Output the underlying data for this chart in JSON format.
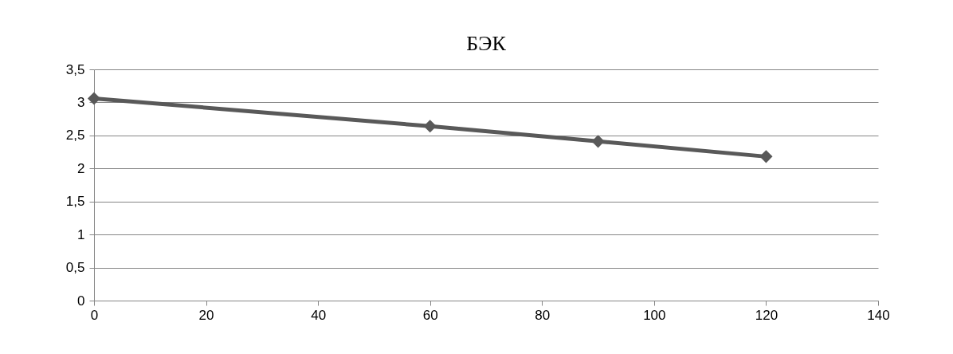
{
  "chart_data": {
    "type": "line",
    "title": "БЭК",
    "x": [
      0,
      60,
      90,
      120
    ],
    "series": [
      {
        "color": "#595959",
        "values": [
          3.06,
          2.64,
          2.41,
          2.18
        ]
      }
    ],
    "xlim": [
      0,
      140
    ],
    "xticks": [
      0,
      20,
      40,
      60,
      80,
      100,
      120,
      140
    ],
    "ylim": [
      0,
      3.5
    ],
    "yticks": [
      {
        "value": 0,
        "label": "0"
      },
      {
        "value": 0.5,
        "label": "0,5"
      },
      {
        "value": 1,
        "label": "1"
      },
      {
        "value": 1.5,
        "label": "1,5"
      },
      {
        "value": 2,
        "label": "2"
      },
      {
        "value": 2.5,
        "label": "2,5"
      },
      {
        "value": 3,
        "label": "3"
      },
      {
        "value": 3.5,
        "label": "3,5"
      }
    ],
    "grid": "y",
    "legend": false,
    "marker": "diamond",
    "line_style": "solid"
  }
}
